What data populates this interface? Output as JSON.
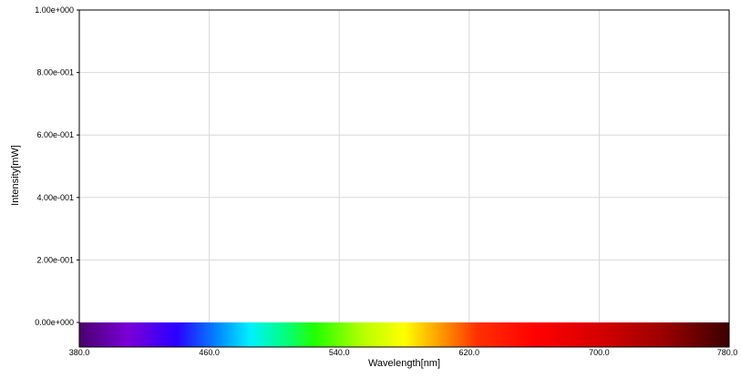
{
  "chart_data": {
    "type": "line",
    "title": "",
    "xlabel": "Wavelength[nm]",
    "ylabel": "Intensity[mW]",
    "xlim": [
      380.0,
      780.0
    ],
    "ylim": [
      0.0,
      1.0
    ],
    "x_ticks": [
      380.0,
      460.0,
      540.0,
      620.0,
      700.0,
      780.0
    ],
    "x_tick_labels": [
      "380.0",
      "460.0",
      "540.0",
      "620.0",
      "700.0",
      "780.0"
    ],
    "y_ticks": [
      0.0,
      0.2,
      0.4,
      0.6,
      0.8,
      1.0
    ],
    "y_tick_labels": [
      "0.00e+000",
      "2.00e-001",
      "4.00e-001",
      "6.00e-001",
      "8.00e-001",
      "1.00e+000"
    ],
    "grid": true,
    "series": [],
    "spectrum_band": {
      "stops": [
        {
          "x": 380.0,
          "color": "#4b0070"
        },
        {
          "x": 410.0,
          "color": "#7a00d6"
        },
        {
          "x": 440.0,
          "color": "#2a00ff"
        },
        {
          "x": 465.0,
          "color": "#0088ff"
        },
        {
          "x": 485.0,
          "color": "#00f0ff"
        },
        {
          "x": 505.0,
          "color": "#00ff88"
        },
        {
          "x": 525.0,
          "color": "#22ff00"
        },
        {
          "x": 555.0,
          "color": "#b8ff00"
        },
        {
          "x": 580.0,
          "color": "#ffff00"
        },
        {
          "x": 600.0,
          "color": "#ffa500"
        },
        {
          "x": 625.0,
          "color": "#ff3000"
        },
        {
          "x": 660.0,
          "color": "#ff0000"
        },
        {
          "x": 700.0,
          "color": "#d60000"
        },
        {
          "x": 740.0,
          "color": "#9a0000"
        },
        {
          "x": 780.0,
          "color": "#3a0000"
        }
      ]
    },
    "colors": {
      "grid": "#d9d9d9",
      "frame": "#000000"
    }
  }
}
